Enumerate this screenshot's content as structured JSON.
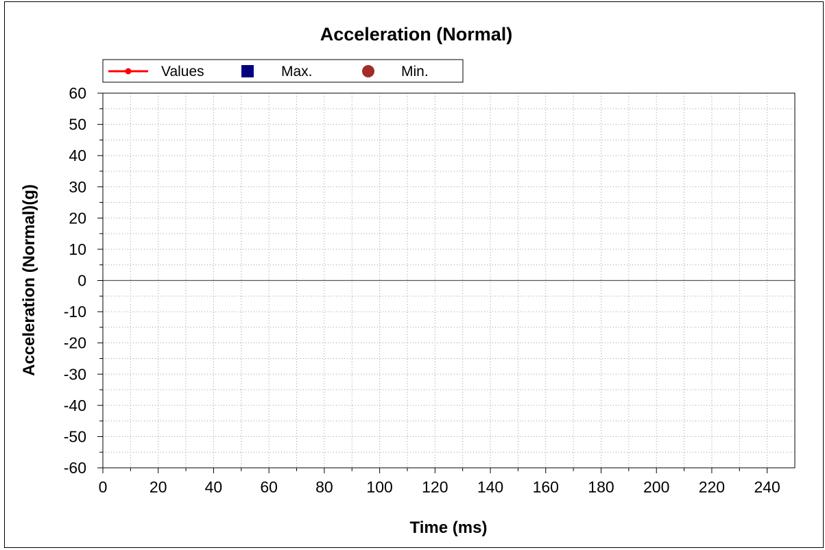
{
  "chart_data": {
    "type": "line",
    "title": "Acceleration (Normal)",
    "xlabel": "Time (ms)",
    "ylabel": "Acceleration (Normal)(g)",
    "xlim": [
      0,
      250
    ],
    "ylim": [
      -60,
      60
    ],
    "x_ticks": [
      0,
      20,
      40,
      60,
      80,
      100,
      120,
      140,
      160,
      180,
      200,
      220,
      240
    ],
    "y_ticks": [
      60,
      50,
      40,
      30,
      20,
      10,
      0,
      -10,
      -20,
      -30,
      -40,
      -50,
      -60
    ],
    "grid": true,
    "legend_position": "top-left",
    "zero_line": 0,
    "legend": [
      {
        "label": "Values",
        "marker": "line-dot",
        "color": "#ff0000"
      },
      {
        "label": "Max.",
        "marker": "square",
        "color": "#000080"
      },
      {
        "label": "Min.",
        "marker": "circle",
        "color": "#a52a2a"
      }
    ],
    "series": [
      {
        "name": "Values",
        "x": [],
        "y": []
      }
    ]
  }
}
